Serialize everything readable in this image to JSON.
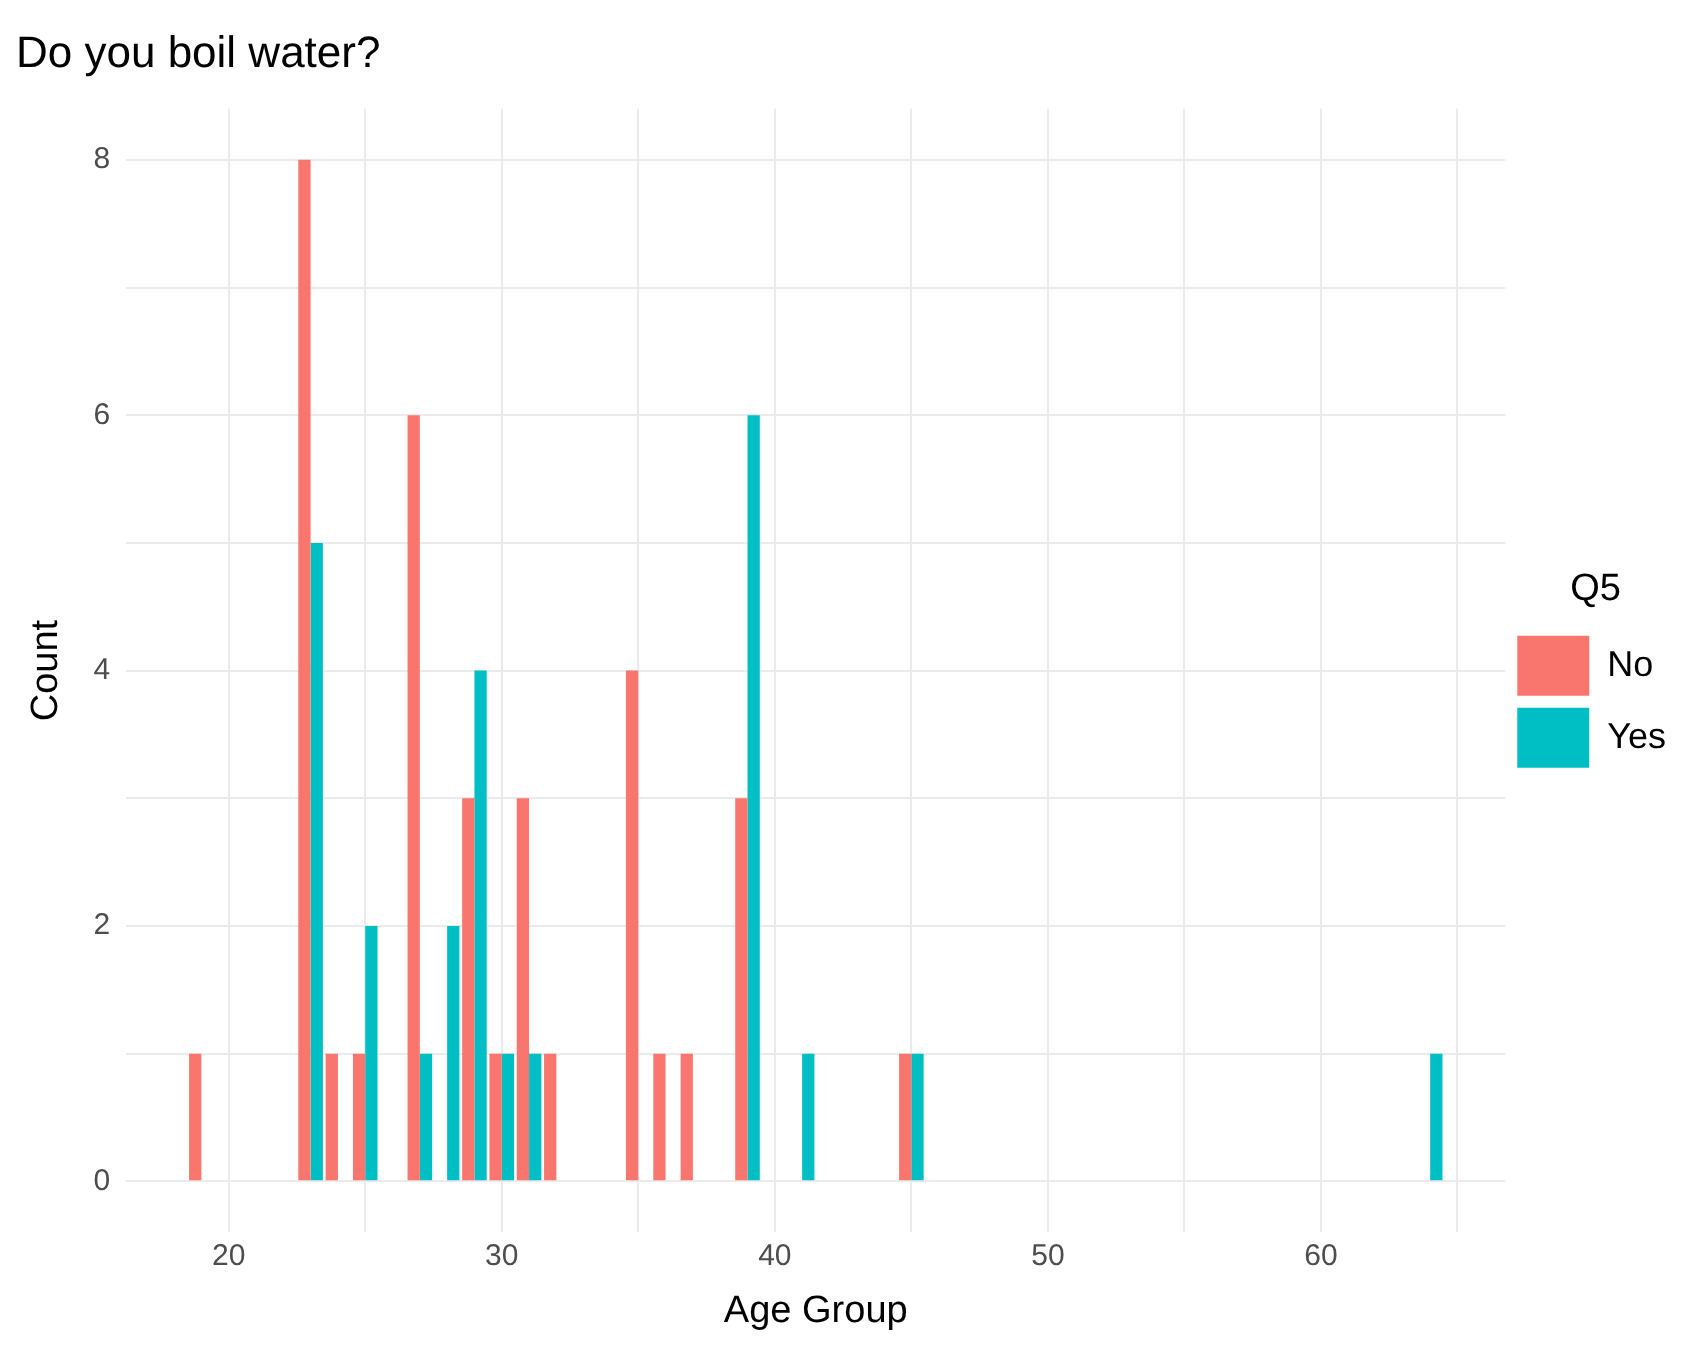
{
  "chart_data": {
    "type": "bar",
    "title": "Do you boil water?",
    "xlabel": "Age Group",
    "ylabel": "Count",
    "legend_title": "Q5",
    "x": [
      19,
      23,
      24,
      25,
      27,
      28,
      29,
      30,
      31,
      32,
      35,
      36,
      37,
      39,
      41,
      45,
      64
    ],
    "series": [
      {
        "name": "No",
        "color": "#f8766d",
        "values": [
          1,
          8,
          1,
          1,
          6,
          null,
          3,
          1,
          3,
          1,
          4,
          1,
          1,
          3,
          null,
          1,
          null
        ]
      },
      {
        "name": "Yes",
        "color": "#00bfc4",
        "values": [
          null,
          5,
          null,
          2,
          1,
          2,
          4,
          1,
          1,
          null,
          null,
          null,
          null,
          6,
          1,
          1,
          1
        ]
      }
    ],
    "xlim": [
      16.25,
      66.75
    ],
    "xticks": [
      20,
      {
        "value": 25,
        "label": null
      },
      30,
      {
        "value": 35,
        "label": null
      },
      40,
      {
        "value": 45,
        "label": null
      },
      50,
      {
        "value": 55,
        "label": null
      },
      60,
      {
        "value": 65,
        "label": null
      }
    ],
    "ylim": [
      -0.4,
      8.4
    ],
    "yticks": [
      0,
      {
        "value": 1,
        "label": null
      },
      2,
      {
        "value": 3,
        "label": null
      },
      4,
      {
        "value": 5,
        "label": null
      },
      6,
      {
        "value": 7,
        "label": null
      },
      8
    ],
    "grid": true,
    "legend": "right"
  }
}
